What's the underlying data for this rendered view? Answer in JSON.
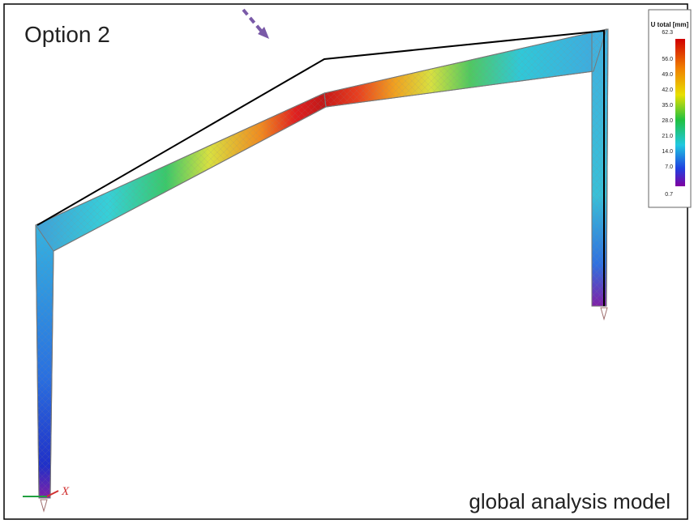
{
  "labels": {
    "option": "Option 2",
    "caption": "global analysis model",
    "axis": "X"
  },
  "legend": {
    "title": "U total [mm]",
    "max": "62.3",
    "ticks": [
      "56.0",
      "49.0",
      "42.0",
      "35.0",
      "28.0",
      "21.0",
      "14.0",
      "7.0"
    ],
    "min": "0.7"
  }
}
